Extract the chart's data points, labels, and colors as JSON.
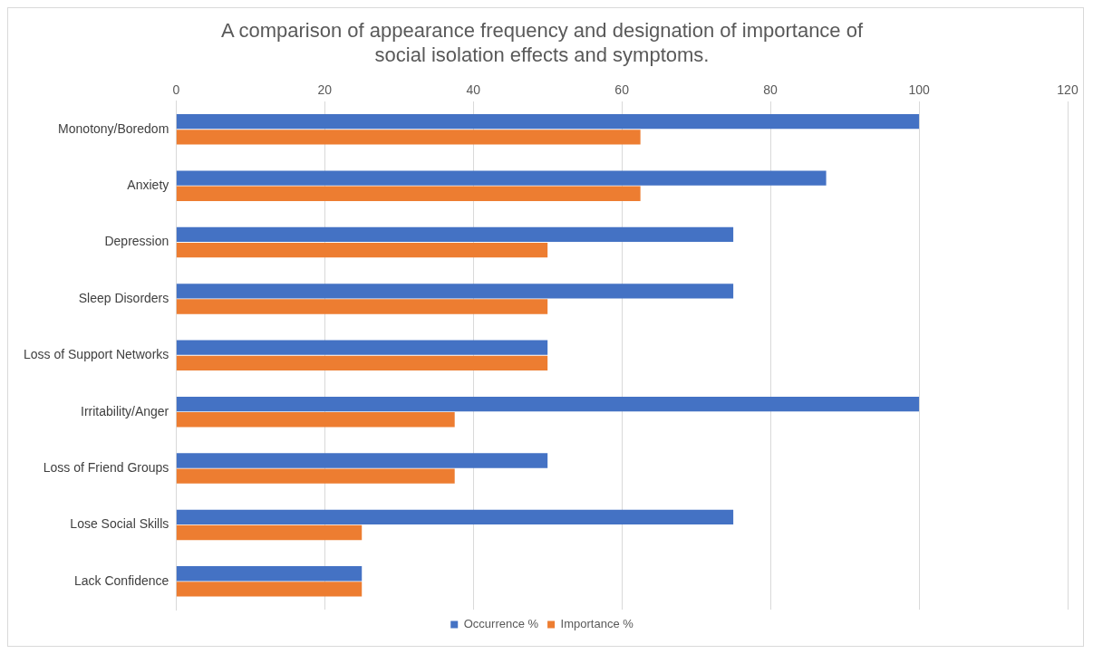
{
  "chart_data": {
    "type": "bar",
    "orientation": "horizontal",
    "title": "A comparison of appearance frequency and designation of importance of social isolation effects and symptoms.",
    "categories": [
      "Monotony/Boredom",
      "Anxiety",
      "Depression",
      "Sleep Disorders",
      "Loss of Support Networks",
      "Irritability/Anger",
      "Loss of Friend Groups",
      "Lose Social Skills",
      "Lack Confidence"
    ],
    "series": [
      {
        "name": "Occurrence %",
        "color": "#4472c4",
        "values": [
          100,
          87.5,
          75,
          75,
          50,
          100,
          50,
          75,
          25
        ]
      },
      {
        "name": "Importance %",
        "color": "#ed7d31",
        "values": [
          62.5,
          62.5,
          50,
          50,
          50,
          37.5,
          37.5,
          25,
          25
        ]
      }
    ],
    "xlim": [
      0,
      120
    ],
    "xticks": [
      0,
      20,
      40,
      60,
      80,
      100,
      120
    ],
    "grid": "x",
    "legend": "bottom"
  }
}
